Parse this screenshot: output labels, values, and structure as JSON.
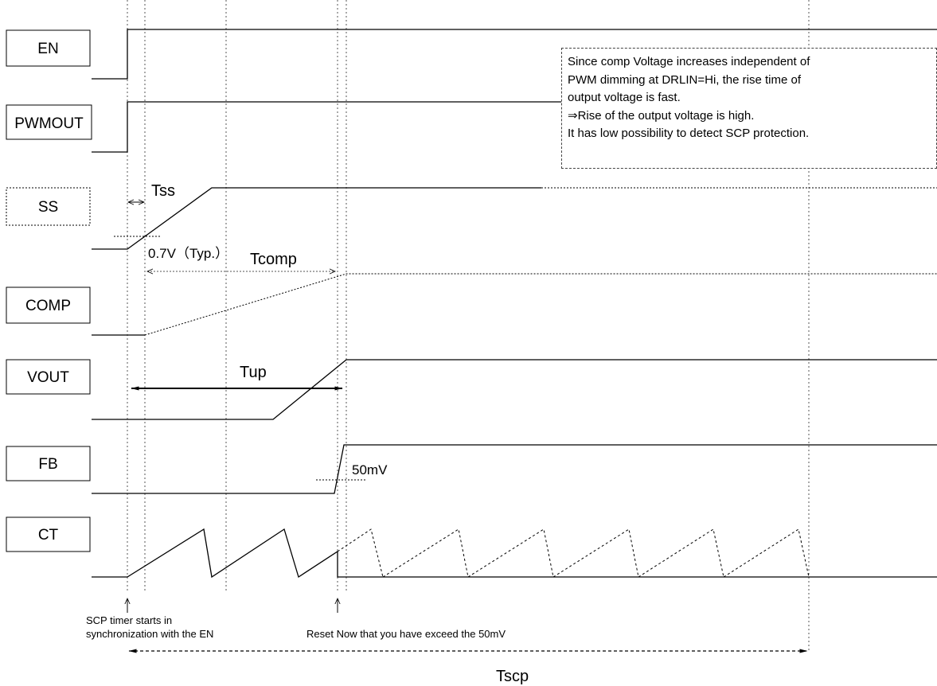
{
  "signals": [
    {
      "id": "en",
      "label": "EN"
    },
    {
      "id": "pwmout",
      "label": "PWMOUT"
    },
    {
      "id": "ss",
      "label": "SS"
    },
    {
      "id": "comp",
      "label": "COMP"
    },
    {
      "id": "vout",
      "label": "VOUT"
    },
    {
      "id": "fb",
      "label": "FB"
    },
    {
      "id": "ct",
      "label": "CT"
    }
  ],
  "annotations": {
    "tss": "Tss",
    "ss_threshold": "0.7V（Typ.）",
    "tcomp": "Tcomp",
    "tup": "Tup",
    "fb_threshold": "50mV",
    "tscp": "Tscp",
    "scp_start_line1": "SCP timer starts in",
    "scp_start_line2": "synchronization with the EN",
    "reset": "Reset Now that you have exceed the 50mV"
  },
  "note_lines": [
    "Since comp Voltage increases independent of",
    "PWM dimming at DRLIN=Hi,  the rise time of",
    "output voltage is fast.",
    "⇒Rise of the output voltage is high.",
    "It has low possibility to detect SCP protection."
  ],
  "colors": {
    "line": "#000000",
    "background": "#ffffff",
    "dotted": "#555555"
  }
}
